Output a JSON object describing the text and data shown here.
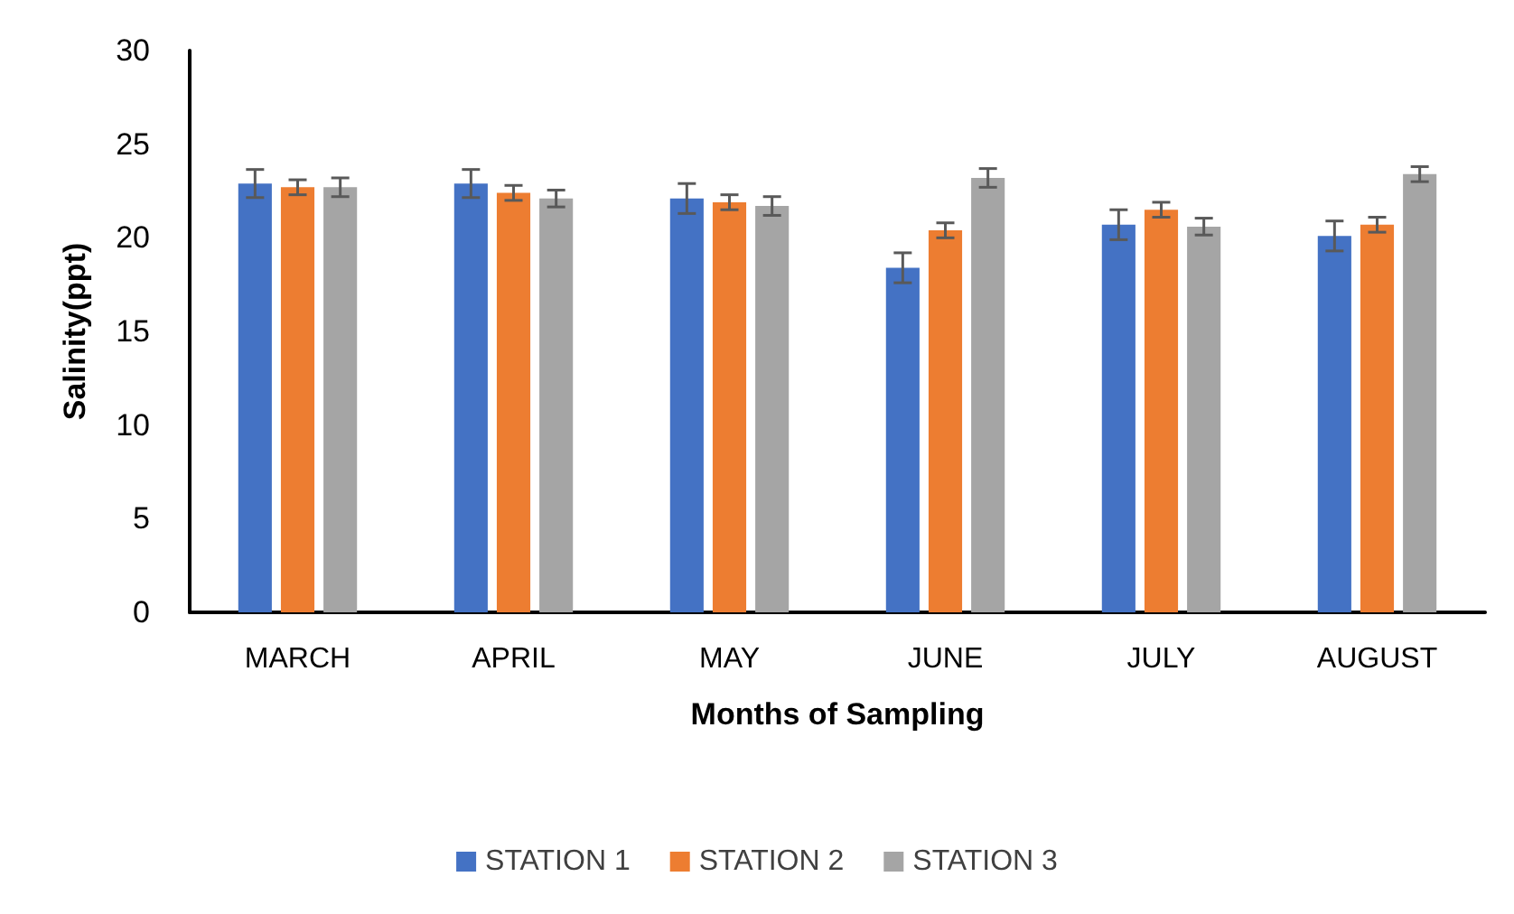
{
  "chart_data": {
    "type": "bar",
    "xlabel": "Months of Sampling",
    "ylabel": "Salinity(ppt)",
    "categories": [
      "MARCH",
      "APRIL",
      "MAY",
      "JUNE",
      "JULY",
      "AUGUST"
    ],
    "series": [
      {
        "name": "STATION 1",
        "color": "#4472c4",
        "values": [
          22.9,
          22.9,
          22.1,
          18.4,
          20.7,
          20.1
        ],
        "errors": [
          0.75,
          0.75,
          0.8,
          0.8,
          0.8,
          0.8
        ]
      },
      {
        "name": "STATION 2",
        "color": "#ed7d31",
        "values": [
          22.7,
          22.4,
          21.9,
          20.4,
          21.5,
          20.7
        ],
        "errors": [
          0.4,
          0.4,
          0.4,
          0.4,
          0.4,
          0.4
        ]
      },
      {
        "name": "STATION 3",
        "color": "#a5a5a5",
        "values": [
          22.7,
          22.1,
          21.7,
          23.2,
          20.6,
          23.4
        ],
        "errors": [
          0.5,
          0.45,
          0.5,
          0.5,
          0.45,
          0.4
        ]
      }
    ],
    "ylim": [
      0,
      30
    ],
    "yticks": [
      0,
      5,
      10,
      15,
      20,
      25,
      30
    ],
    "grid": false,
    "legend": "bottom"
  }
}
